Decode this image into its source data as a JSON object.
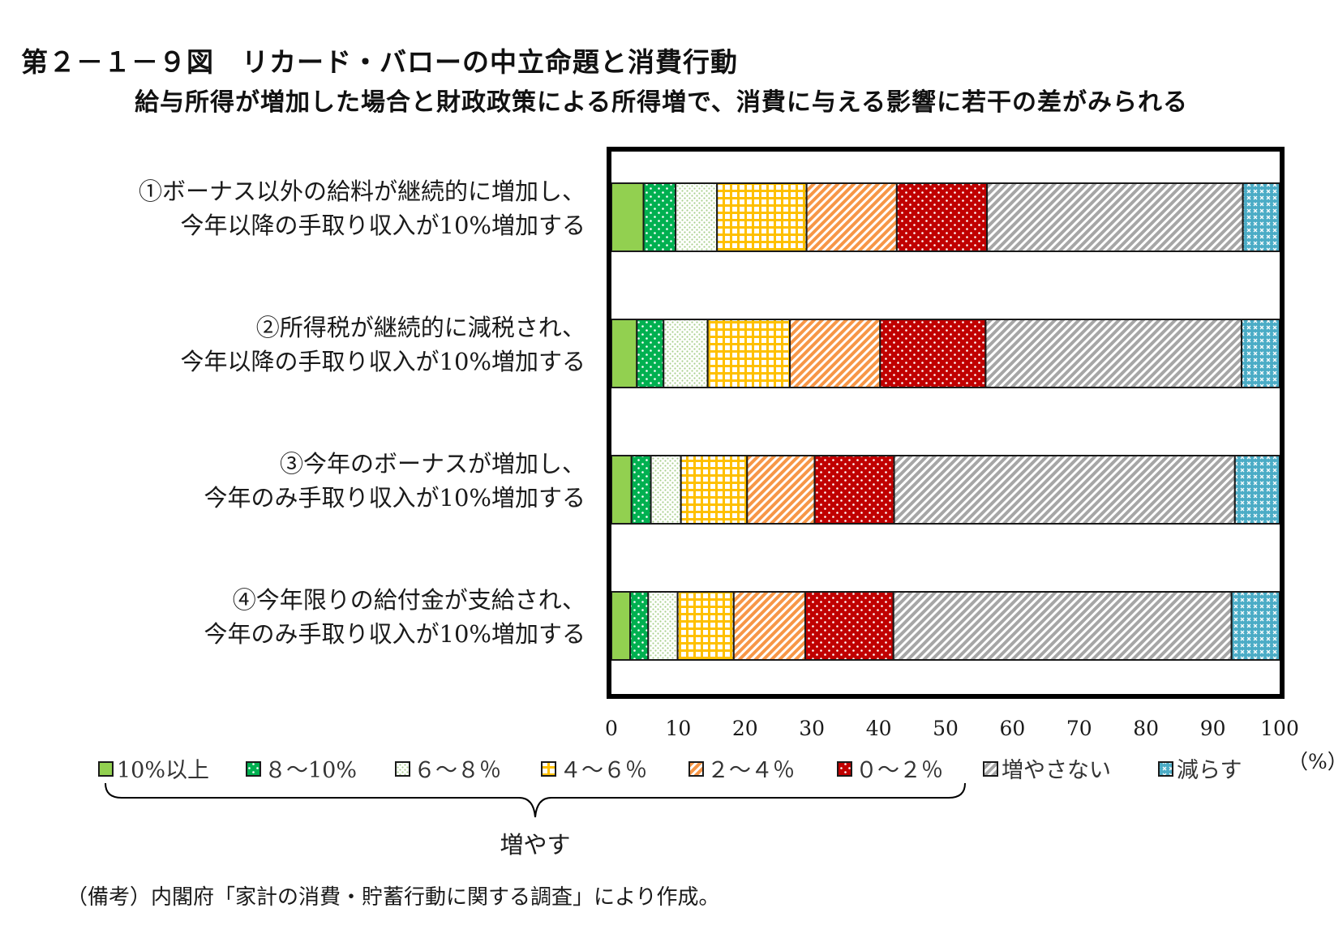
{
  "header": {
    "title": "第２－１－９図　リカード・バローの中立命題と消費行動",
    "subtitle": "給与所得が増加した場合と財政政策による所得増で、消費に与える影響に若干の差がみられる"
  },
  "note": "（備考）内閣府「家計の消費・貯蓄行動に関する調査」により作成。",
  "brace_label": "増やす",
  "unit_label": "（%）",
  "colors": {
    "s10plus": "#92d050",
    "s8_10": "#00b050",
    "s6_8": "#a9d08e",
    "s4_6": "#ffc000",
    "s2_4": "#f79646",
    "s0_2": "#c00000",
    "no_increase": "#a6a6a6",
    "decrease": "#4bacc6"
  },
  "chart_data": {
    "type": "bar",
    "orientation": "horizontal",
    "stacked": true,
    "categories": [
      [
        "①ボーナス以外の給料が継続的に増加し、",
        "今年以降の手取り収入が10%増加する"
      ],
      [
        "②所得税が継続的に減税され、",
        "今年以降の手取り収入が10%増加する"
      ],
      [
        "③今年のボーナスが増加し、",
        "今年のみ手取り収入が10%増加する"
      ],
      [
        "④今年限りの給付金が支給され、",
        "今年のみ手取り収入が10%増加する"
      ]
    ],
    "series": [
      {
        "name": "10%以上",
        "key": "s10plus",
        "pattern": "solid",
        "values": [
          4.8,
          3.8,
          3.0,
          2.8
        ]
      },
      {
        "name": "８～10%",
        "key": "s8_10",
        "pattern": "dots",
        "values": [
          4.8,
          4.0,
          2.9,
          2.7
        ]
      },
      {
        "name": "６～８％",
        "key": "s6_8",
        "pattern": "fine-dots",
        "values": [
          6.2,
          6.6,
          4.5,
          4.4
        ]
      },
      {
        "name": "４～６％",
        "key": "s4_6",
        "pattern": "grid",
        "values": [
          13.4,
          12.3,
          9.9,
          8.4
        ]
      },
      {
        "name": "２～４％",
        "key": "s2_4",
        "pattern": "diagonal",
        "values": [
          13.5,
          13.5,
          10.1,
          10.7
        ]
      },
      {
        "name": "０～２％",
        "key": "s0_2",
        "pattern": "dots",
        "values": [
          13.5,
          15.8,
          11.9,
          13.2
        ]
      },
      {
        "name": "増やさない",
        "key": "no_increase",
        "pattern": "diagonal",
        "values": [
          38.3,
          38.3,
          51.0,
          50.6
        ]
      },
      {
        "name": "減らす",
        "key": "decrease",
        "pattern": "cross",
        "values": [
          5.5,
          5.7,
          6.7,
          7.2
        ]
      }
    ],
    "xlim": [
      0,
      100
    ],
    "xticks": [
      0,
      10,
      20,
      30,
      40,
      50,
      60,
      70,
      80,
      90,
      100
    ],
    "xlabel": "（%）",
    "legend_position": "bottom",
    "grid": false
  }
}
